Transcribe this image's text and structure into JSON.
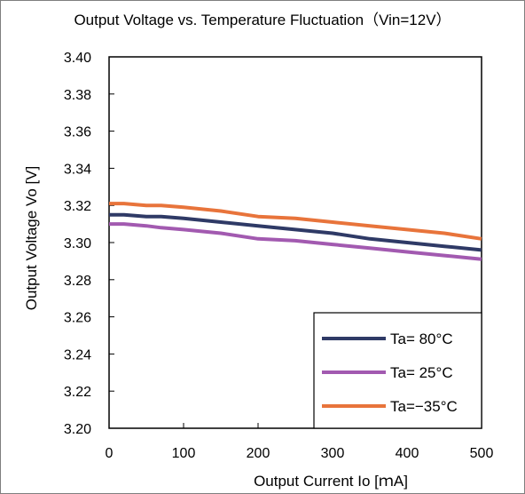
{
  "chart_data": {
    "type": "line",
    "title": "Output Voltage vs. Temperature Fluctuation（Vin=12V）",
    "xlabel": "Output Current  Io [ｍA]",
    "ylabel": "Output Voltage Vo [V]",
    "xlim": [
      0,
      500
    ],
    "ylim": [
      3.2,
      3.4
    ],
    "x_ticks": [
      0,
      100,
      200,
      300,
      400,
      500
    ],
    "x_tick_labels": [
      "0",
      "100",
      "200",
      "300",
      "400",
      "500"
    ],
    "y_ticks": [
      3.2,
      3.22,
      3.24,
      3.26,
      3.28,
      3.3,
      3.32,
      3.34,
      3.36,
      3.38,
      3.4
    ],
    "y_tick_labels": [
      "3.20",
      "3.22",
      "3.24",
      "3.26",
      "3.28",
      "3.30",
      "3.32",
      "3.34",
      "3.36",
      "3.38",
      "3.40"
    ],
    "grid": false,
    "legend_position": "bottom-right",
    "series": [
      {
        "name": "Ta=  80°C",
        "color": "#2f3a66",
        "x": [
          0,
          20,
          50,
          70,
          100,
          150,
          200,
          250,
          300,
          350,
          400,
          450,
          500
        ],
        "values": [
          3.315,
          3.315,
          3.314,
          3.314,
          3.313,
          3.311,
          3.309,
          3.307,
          3.305,
          3.302,
          3.3,
          3.298,
          3.296
        ]
      },
      {
        "name": "Ta=  25°C",
        "color": "#a25ab0",
        "x": [
          0,
          20,
          50,
          70,
          100,
          150,
          200,
          250,
          300,
          350,
          400,
          450,
          500
        ],
        "values": [
          3.31,
          3.31,
          3.309,
          3.308,
          3.307,
          3.305,
          3.302,
          3.301,
          3.299,
          3.297,
          3.295,
          3.293,
          3.291
        ]
      },
      {
        "name": "Ta=−35°C",
        "color": "#e8743b",
        "x": [
          0,
          20,
          50,
          70,
          100,
          150,
          200,
          250,
          300,
          350,
          400,
          450,
          500
        ],
        "values": [
          3.321,
          3.321,
          3.32,
          3.32,
          3.319,
          3.317,
          3.314,
          3.313,
          3.311,
          3.309,
          3.307,
          3.305,
          3.302
        ]
      }
    ]
  }
}
